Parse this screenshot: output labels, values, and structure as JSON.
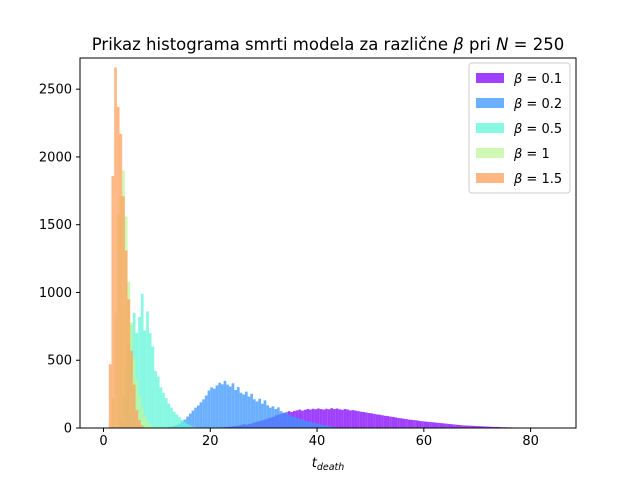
{
  "chart_data": {
    "type": "bar",
    "title": "Prikaz histograma smrti modela za različne β pri N = 250",
    "title_parts": {
      "prefix": "Prikaz histograma smrti modela za različne ",
      "beta": "β",
      "middle": " pri ",
      "n": "N",
      "suffix": " = 250"
    },
    "xlabel": {
      "base": "t",
      "sub": "death"
    },
    "ylabel": "",
    "xlim": [
      -4.4,
      88.5
    ],
    "ylim": [
      0,
      2730
    ],
    "xticks": [
      0,
      20,
      40,
      60,
      80
    ],
    "yticks": [
      0,
      500,
      1000,
      1500,
      2000,
      2500
    ],
    "grid": false,
    "legend_position": "top-right",
    "series": [
      {
        "name": "β = 0.1",
        "legend": {
          "sym": "β",
          "eq": " = 0.1"
        },
        "color": "#8000ff",
        "bin_width": 0.5,
        "start": 22,
        "values": [
          4,
          6,
          8,
          10,
          12,
          16,
          18,
          22,
          28,
          24,
          30,
          34,
          40,
          46,
          50,
          56,
          62,
          70,
          76,
          82,
          92,
          98,
          104,
          112,
          116,
          124,
          118,
          126,
          130,
          136,
          128,
          134,
          140,
          136,
          142,
          138,
          144,
          140,
          136,
          142,
          138,
          146,
          140,
          144,
          138,
          134,
          140,
          136,
          130,
          132,
          128,
          124,
          120,
          118,
          114,
          110,
          108,
          104,
          100,
          98,
          94,
          90,
          88,
          84,
          82,
          78,
          74,
          72,
          68,
          66,
          62,
          60,
          58,
          56,
          52,
          50,
          48,
          46,
          44,
          42,
          40,
          38,
          36,
          34,
          32,
          30,
          28,
          26,
          24,
          22,
          20,
          19,
          18,
          17,
          16,
          15,
          14,
          13,
          12,
          11,
          10,
          9,
          8,
          8,
          7,
          6,
          6,
          5,
          5,
          4,
          4,
          3,
          3,
          3,
          2,
          2,
          2,
          1,
          1,
          1
        ]
      },
      {
        "name": "β = 0.2",
        "legend": {
          "sym": "β",
          "eq": " = 0.2"
        },
        "color": "#3996ff",
        "bin_width": 0.5,
        "start": 12,
        "values": [
          6,
          10,
          14,
          22,
          32,
          46,
          62,
          84,
          106,
          128,
          150,
          166,
          190,
          212,
          240,
          276,
          300,
          290,
          314,
          334,
          322,
          348,
          320,
          306,
          330,
          280,
          302,
          260,
          248,
          268,
          232,
          252,
          212,
          196,
          216,
          180,
          204,
          168,
          150,
          160,
          140,
          152,
          124,
          108,
          114,
          96,
          88,
          82,
          74,
          68,
          62,
          56,
          50,
          46,
          40,
          36,
          30,
          26,
          22,
          18,
          14,
          10,
          8,
          6,
          4,
          2
        ]
      },
      {
        "name": "β = 0.5",
        "legend": {
          "sym": "β",
          "eq": " = 0.5"
        },
        "color": "#5ff5d8",
        "bin_width": 0.5,
        "start": 3,
        "values": [
          70,
          240,
          450,
          620,
          760,
          850,
          700,
          820,
          990,
          720,
          860,
          700,
          600,
          420,
          380,
          300,
          260,
          220,
          180,
          150,
          120,
          100,
          80,
          60,
          45,
          30,
          20,
          12,
          6,
          3
        ]
      },
      {
        "name": "β = 1",
        "legend": {
          "sym": "β",
          "eq": " = 1"
        },
        "color": "#bef59a",
        "bin_width": 0.5,
        "start": 1.5,
        "values": [
          220,
          850,
          1580,
          1710,
          1900,
          1560,
          1080,
          780,
          520,
          360,
          240,
          150,
          90,
          50,
          25,
          10
        ]
      },
      {
        "name": "β = 1.5",
        "legend": {
          "sym": "β",
          "eq": " = 1.5"
        },
        "color": "#ff9f5a",
        "bin_width": 0.5,
        "start": 1,
        "values": [
          470,
          1860,
          2660,
          2370,
          2170,
          1710,
          1310,
          950,
          570,
          320,
          130,
          60,
          20
        ]
      }
    ]
  }
}
